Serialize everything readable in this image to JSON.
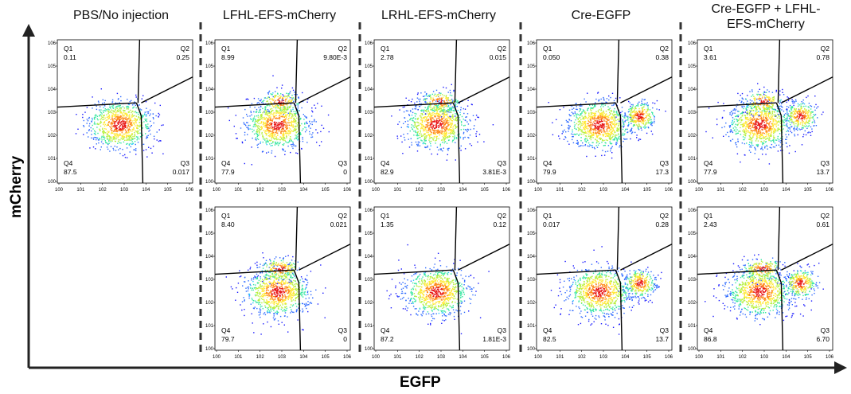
{
  "titles": {
    "col1": "PBS/No injection",
    "col2": "LFHL-EFS-mCherry",
    "col3": "LRHL-EFS-mCherry",
    "col4": "Cre-EGFP",
    "col5_line1": "Cre-EGFP + LFHL-",
    "col5_line2": "EFS-mCherry"
  },
  "axes": {
    "y_label": "mCherry",
    "x_label": "EGFP",
    "tick_labels": [
      "0",
      "1",
      "2",
      "3",
      "4",
      "5",
      "6"
    ],
    "tick_base": "10"
  },
  "chart_data": [
    {
      "type": "scatter",
      "panel": "PBS/No injection",
      "row": 1,
      "quadrants": {
        "Q1": "0.11",
        "Q2": "0.25",
        "Q3": "0.017",
        "Q4": "87.5"
      },
      "populations": 1
    },
    {
      "type": "scatter",
      "panel": "LFHL-EFS-mCherry",
      "row": 1,
      "quadrants": {
        "Q1": "8.99",
        "Q2": "9.80E-3",
        "Q3": "0",
        "Q4": "77.9"
      },
      "populations": 1
    },
    {
      "type": "scatter",
      "panel": "LRHL-EFS-mCherry",
      "row": 1,
      "quadrants": {
        "Q1": "2.78",
        "Q2": "0.015",
        "Q3": "3.81E-3",
        "Q4": "82.9"
      },
      "populations": 1
    },
    {
      "type": "scatter",
      "panel": "Cre-EGFP",
      "row": 1,
      "quadrants": {
        "Q1": "0.050",
        "Q2": "0.38",
        "Q3": "17.3",
        "Q4": "79.9"
      },
      "populations": 2
    },
    {
      "type": "scatter",
      "panel": "Cre-EGFP + LFHL-EFS-mCherry",
      "row": 1,
      "quadrants": {
        "Q1": "3.61",
        "Q2": "0.78",
        "Q3": "13.7",
        "Q4": "77.9"
      },
      "populations": 2
    },
    {
      "type": "scatter",
      "panel": "LFHL-EFS-mCherry",
      "row": 2,
      "quadrants": {
        "Q1": "8.40",
        "Q2": "0.021",
        "Q3": "0",
        "Q4": "79.7"
      },
      "populations": 1
    },
    {
      "type": "scatter",
      "panel": "LRHL-EFS-mCherry",
      "row": 2,
      "quadrants": {
        "Q1": "1.35",
        "Q2": "0.12",
        "Q3": "1.81E-3",
        "Q4": "87.2"
      },
      "populations": 1
    },
    {
      "type": "scatter",
      "panel": "Cre-EGFP",
      "row": 2,
      "quadrants": {
        "Q1": "0.017",
        "Q2": "0.28",
        "Q3": "13.7",
        "Q4": "82.5"
      },
      "populations": 2
    },
    {
      "type": "scatter",
      "panel": "Cre-EGFP + LFHL-EFS-mCherry",
      "row": 2,
      "quadrants": {
        "Q1": "2.43",
        "Q2": "0.61",
        "Q3": "6.70",
        "Q4": "86.8"
      },
      "populations": 2
    }
  ]
}
